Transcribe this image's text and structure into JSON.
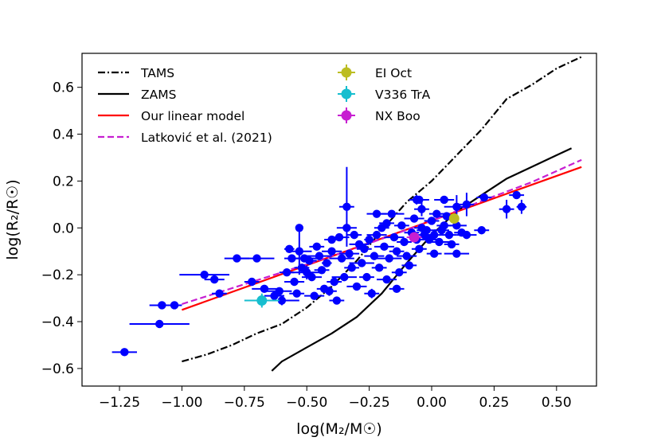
{
  "chart_data": {
    "type": "scatter",
    "xlabel": "log(M₂/M☉)",
    "ylabel": "log(R₂/R☉)",
    "xlim": [
      -1.4,
      0.66
    ],
    "ylim": [
      -0.675,
      0.745
    ],
    "xticks": [
      {
        "v": -1.25,
        "label": "−1.25"
      },
      {
        "v": -1.0,
        "label": "−1.00"
      },
      {
        "v": -0.75,
        "label": "−0.75"
      },
      {
        "v": -0.5,
        "label": "−0.50"
      },
      {
        "v": -0.25,
        "label": "−0.25"
      },
      {
        "v": 0.0,
        "label": "0.00"
      },
      {
        "v": 0.25,
        "label": "0.25"
      },
      {
        "v": 0.5,
        "label": "0.50"
      }
    ],
    "yticks": [
      {
        "v": -0.6,
        "label": "−0.6"
      },
      {
        "v": -0.4,
        "label": "−0.4"
      },
      {
        "v": -0.2,
        "label": "−0.2"
      },
      {
        "v": 0.0,
        "label": "0.0"
      },
      {
        "v": 0.2,
        "label": "0.2"
      },
      {
        "v": 0.4,
        "label": "0.4"
      },
      {
        "v": 0.6,
        "label": "0.6"
      }
    ],
    "grid": false,
    "legend_position": "top-left",
    "lines": [
      {
        "name": "TAMS",
        "color": "#000000",
        "style": "dashdot",
        "x": [
          -1.0,
          -0.9,
          -0.8,
          -0.7,
          -0.6,
          -0.5,
          -0.4,
          -0.3,
          -0.2,
          -0.1,
          0.0,
          0.1,
          0.2,
          0.3,
          0.4,
          0.5,
          0.6
        ],
        "y": [
          -0.57,
          -0.54,
          -0.5,
          -0.45,
          -0.41,
          -0.34,
          -0.25,
          -0.14,
          -0.01,
          0.11,
          0.2,
          0.31,
          0.42,
          0.55,
          0.61,
          0.68,
          0.73
        ]
      },
      {
        "name": "ZAMS",
        "color": "#000000",
        "style": "solid",
        "x": [
          -0.64,
          -0.6,
          -0.5,
          -0.4,
          -0.3,
          -0.2,
          -0.1,
          0.0,
          0.1,
          0.2,
          0.3,
          0.4,
          0.5,
          0.56
        ],
        "y": [
          -0.61,
          -0.57,
          -0.51,
          -0.45,
          -0.38,
          -0.28,
          -0.15,
          -0.03,
          0.07,
          0.14,
          0.21,
          0.26,
          0.31,
          0.34
        ]
      },
      {
        "name": "Our linear model",
        "color": "#ff0000",
        "style": "solid",
        "x": [
          -1.0,
          0.6
        ],
        "y": [
          -0.35,
          0.26
        ]
      },
      {
        "name": "Latković et al. (2021)",
        "color": "#c71fd1",
        "style": "dashed",
        "x": [
          -1.0,
          -0.6,
          -0.3,
          0.0,
          0.2,
          0.4,
          0.6
        ],
        "y": [
          -0.325,
          -0.19,
          -0.085,
          0.03,
          0.115,
          0.195,
          0.29
        ]
      }
    ],
    "series": [
      {
        "name": "",
        "color": "#0000ff",
        "points": [
          {
            "x": -1.23,
            "y": -0.53,
            "xe": 0.05,
            "ye": 0.0
          },
          {
            "x": -1.09,
            "y": -0.41,
            "xe": 0.12,
            "ye": 0.0
          },
          {
            "x": -1.08,
            "y": -0.33,
            "xe": 0.05,
            "ye": 0.0
          },
          {
            "x": -1.03,
            "y": -0.33,
            "xe": 0.03,
            "ye": 0.0
          },
          {
            "x": -0.91,
            "y": -0.2,
            "xe": 0.1,
            "ye": 0.0
          },
          {
            "x": -0.87,
            "y": -0.22,
            "xe": 0.04,
            "ye": 0.0
          },
          {
            "x": -0.85,
            "y": -0.28,
            "xe": 0.03,
            "ye": 0.0
          },
          {
            "x": -0.78,
            "y": -0.13,
            "xe": 0.05,
            "ye": 0.0
          },
          {
            "x": -0.72,
            "y": -0.23,
            "xe": 0.03,
            "ye": 0.0
          },
          {
            "x": -0.7,
            "y": -0.13,
            "xe": 0.07,
            "ye": 0.0
          },
          {
            "x": -0.67,
            "y": -0.26,
            "xe": 0.05,
            "ye": 0.01
          },
          {
            "x": -0.63,
            "y": -0.29,
            "xe": 0.04,
            "ye": 0.0
          },
          {
            "x": -0.61,
            "y": -0.27,
            "xe": 0.05,
            "ye": 0.0
          },
          {
            "x": -0.6,
            "y": -0.31,
            "xe": 0.07,
            "ye": 0.02
          },
          {
            "x": -0.58,
            "y": -0.19,
            "xe": 0.03,
            "ye": 0.0
          },
          {
            "x": -0.57,
            "y": -0.09,
            "xe": 0.02,
            "ye": 0.0
          },
          {
            "x": -0.56,
            "y": -0.13,
            "xe": 0.03,
            "ye": 0.0
          },
          {
            "x": -0.55,
            "y": -0.23,
            "xe": 0.04,
            "ye": 0.0
          },
          {
            "x": -0.54,
            "y": -0.28,
            "xe": 0.03,
            "ye": 0.0
          },
          {
            "x": -0.53,
            "y": -0.1,
            "xe": 0.05,
            "ye": 0.1
          },
          {
            "x": -0.52,
            "y": -0.17,
            "xe": 0.03,
            "ye": 0.0
          },
          {
            "x": -0.51,
            "y": -0.13,
            "xe": 0.06,
            "ye": 0.0
          },
          {
            "x": -0.5,
            "y": -0.19,
            "xe": 0.07,
            "ye": 0.03
          },
          {
            "x": -0.49,
            "y": -0.14,
            "xe": 0.03,
            "ye": 0.0
          },
          {
            "x": -0.48,
            "y": -0.21,
            "xe": 0.04,
            "ye": 0.0
          },
          {
            "x": -0.47,
            "y": -0.29,
            "xe": 0.04,
            "ye": 0.0
          },
          {
            "x": -0.46,
            "y": -0.08,
            "xe": 0.03,
            "ye": 0.0
          },
          {
            "x": -0.45,
            "y": -0.12,
            "xe": 0.05,
            "ye": 0.0
          },
          {
            "x": -0.44,
            "y": -0.18,
            "xe": 0.03,
            "ye": 0.0
          },
          {
            "x": -0.43,
            "y": -0.26,
            "xe": 0.03,
            "ye": 0.0
          },
          {
            "x": -0.42,
            "y": -0.15,
            "xe": 0.02,
            "ye": 0.0
          },
          {
            "x": -0.41,
            "y": -0.27,
            "xe": 0.03,
            "ye": 0.02
          },
          {
            "x": -0.4,
            "y": -0.1,
            "xe": 0.04,
            "ye": 0.0
          },
          {
            "x": -0.4,
            "y": -0.05,
            "xe": 0.03,
            "ye": 0.0
          },
          {
            "x": -0.39,
            "y": -0.23,
            "xe": 0.03,
            "ye": 0.0
          },
          {
            "x": -0.38,
            "y": -0.31,
            "xe": 0.03,
            "ye": 0.0
          },
          {
            "x": -0.37,
            "y": -0.04,
            "xe": 0.04,
            "ye": 0.0
          },
          {
            "x": -0.36,
            "y": -0.13,
            "xe": 0.05,
            "ye": 0.0
          },
          {
            "x": -0.35,
            "y": -0.21,
            "xe": 0.05,
            "ye": 0.0
          },
          {
            "x": -0.34,
            "y": 0.0,
            "xe": 0.04,
            "ye": 0.0
          },
          {
            "x": -0.33,
            "y": -0.11,
            "xe": 0.04,
            "ye": 0.0
          },
          {
            "x": -0.32,
            "y": -0.17,
            "xe": 0.03,
            "ye": 0.0
          },
          {
            "x": -0.31,
            "y": -0.03,
            "xe": 0.03,
            "ye": 0.0
          },
          {
            "x": -0.3,
            "y": -0.25,
            "xe": 0.04,
            "ye": 0.0
          },
          {
            "x": -0.29,
            "y": -0.07,
            "xe": 0.04,
            "ye": 0.0
          },
          {
            "x": -0.28,
            "y": -0.15,
            "xe": 0.05,
            "ye": 0.0
          },
          {
            "x": -0.27,
            "y": -0.09,
            "xe": 0.03,
            "ye": 0.0
          },
          {
            "x": -0.26,
            "y": -0.21,
            "xe": 0.03,
            "ye": 0.0
          },
          {
            "x": -0.25,
            "y": -0.05,
            "xe": 0.02,
            "ye": 0.0
          },
          {
            "x": -0.24,
            "y": -0.28,
            "xe": 0.03,
            "ye": 0.02
          },
          {
            "x": -0.23,
            "y": -0.12,
            "xe": 0.04,
            "ye": 0.0
          },
          {
            "x": -0.22,
            "y": -0.03,
            "xe": 0.04,
            "ye": 0.0
          },
          {
            "x": -0.21,
            "y": -0.17,
            "xe": 0.03,
            "ye": 0.0
          },
          {
            "x": -0.2,
            "y": 0.0,
            "xe": 0.03,
            "ye": 0.0
          },
          {
            "x": -0.19,
            "y": -0.08,
            "xe": 0.04,
            "ye": 0.0
          },
          {
            "x": -0.18,
            "y": -0.22,
            "xe": 0.04,
            "ye": 0.0
          },
          {
            "x": -0.17,
            "y": -0.13,
            "xe": 0.05,
            "ye": 0.0
          },
          {
            "x": -0.16,
            "y": 0.06,
            "xe": 0.05,
            "ye": 0.0
          },
          {
            "x": -0.15,
            "y": -0.04,
            "xe": 0.04,
            "ye": 0.0
          },
          {
            "x": -0.14,
            "y": -0.1,
            "xe": 0.03,
            "ye": 0.0
          },
          {
            "x": -0.13,
            "y": -0.19,
            "xe": 0.03,
            "ye": 0.0
          },
          {
            "x": -0.12,
            "y": 0.01,
            "xe": 0.03,
            "ye": 0.0
          },
          {
            "x": -0.11,
            "y": -0.06,
            "xe": 0.03,
            "ye": 0.0
          },
          {
            "x": -0.1,
            "y": -0.12,
            "xe": 0.04,
            "ye": 0.0
          },
          {
            "x": -0.09,
            "y": -0.16,
            "xe": 0.03,
            "ye": 0.0
          },
          {
            "x": -0.08,
            "y": -0.02,
            "xe": 0.03,
            "ye": 0.0
          },
          {
            "x": -0.07,
            "y": 0.04,
            "xe": 0.04,
            "ye": 0.0
          },
          {
            "x": -0.06,
            "y": -0.05,
            "xe": 0.02,
            "ye": 0.0
          },
          {
            "x": -0.05,
            "y": -0.09,
            "xe": 0.03,
            "ye": 0.0
          },
          {
            "x": -0.04,
            "y": 0.0,
            "xe": 0.03,
            "ye": 0.0
          },
          {
            "x": -0.03,
            "y": -0.03,
            "xe": 0.03,
            "ye": 0.0
          },
          {
            "x": -0.02,
            "y": -0.01,
            "xe": 0.04,
            "ye": 0.0
          },
          {
            "x": -0.01,
            "y": -0.05,
            "xe": 0.03,
            "ye": 0.0
          },
          {
            "x": 0.0,
            "y": 0.03,
            "xe": 0.03,
            "ye": 0.0
          },
          {
            "x": 0.01,
            "y": -0.03,
            "xe": 0.03,
            "ye": 0.0
          },
          {
            "x": 0.02,
            "y": 0.06,
            "xe": 0.03,
            "ye": 0.0
          },
          {
            "x": 0.03,
            "y": -0.06,
            "xe": 0.04,
            "ye": 0.0
          },
          {
            "x": 0.04,
            "y": -0.01,
            "xe": 0.03,
            "ye": 0.0
          },
          {
            "x": 0.05,
            "y": 0.01,
            "xe": 0.03,
            "ye": 0.0
          },
          {
            "x": 0.06,
            "y": 0.05,
            "xe": 0.04,
            "ye": 0.0
          },
          {
            "x": 0.07,
            "y": -0.03,
            "xe": 0.03,
            "ye": 0.0
          },
          {
            "x": 0.08,
            "y": -0.07,
            "xe": 0.03,
            "ye": 0.0
          },
          {
            "x": 0.1,
            "y": 0.09,
            "xe": 0.05,
            "ye": 0.05
          },
          {
            "x": 0.1,
            "y": 0.01,
            "xe": 0.04,
            "ye": 0.0
          },
          {
            "x": 0.12,
            "y": -0.02,
            "xe": 0.03,
            "ye": 0.0
          },
          {
            "x": 0.14,
            "y": -0.03,
            "xe": 0.04,
            "ye": 0.0
          },
          {
            "x": 0.2,
            "y": -0.01,
            "xe": 0.03,
            "ye": 0.0
          },
          {
            "x": 0.21,
            "y": 0.13,
            "xe": 0.03,
            "ye": 0.0
          },
          {
            "x": 0.3,
            "y": 0.08,
            "xe": 0.03,
            "ye": 0.04
          },
          {
            "x": 0.34,
            "y": 0.14,
            "xe": 0.03,
            "ye": 0.0
          },
          {
            "x": 0.36,
            "y": 0.09,
            "xe": 0.02,
            "ye": 0.03
          },
          {
            "x": -0.05,
            "y": 0.12,
            "xe": 0.04,
            "ye": 0.0
          },
          {
            "x": -0.04,
            "y": 0.08,
            "xe": 0.03,
            "ye": 0.03
          },
          {
            "x": 0.05,
            "y": 0.12,
            "xe": 0.04,
            "ye": 0.0
          },
          {
            "x": -0.18,
            "y": 0.02,
            "xe": 0.03,
            "ye": 0.0
          },
          {
            "x": -0.06,
            "y": 0.12,
            "xe": 0.03,
            "ye": 0.02
          },
          {
            "x": -0.34,
            "y": 0.09,
            "xe": 0.03,
            "ye": 0.17
          },
          {
            "x": -0.53,
            "y": 0.0,
            "xe": 0.0,
            "ye": 0.0
          },
          {
            "x": -0.22,
            "y": 0.06,
            "xe": 0.04,
            "ye": 0.0
          },
          {
            "x": 0.14,
            "y": 0.1,
            "xe": 0.03,
            "ye": 0.05
          },
          {
            "x": 0.1,
            "y": -0.11,
            "xe": 0.05,
            "ye": 0.0
          },
          {
            "x": 0.01,
            "y": -0.11,
            "xe": 0.03,
            "ye": 0.0
          },
          {
            "x": -0.14,
            "y": -0.26,
            "xe": 0.03,
            "ye": 0.0
          }
        ]
      },
      {
        "name": "EI Oct",
        "color": "#bcbd22",
        "points": [
          {
            "x": 0.09,
            "y": 0.04,
            "xe": 0.02,
            "ye": 0.02
          }
        ]
      },
      {
        "name": "V336 TrA",
        "color": "#17becf",
        "points": [
          {
            "x": -0.68,
            "y": -0.31,
            "xe": 0.07,
            "ye": 0.03
          }
        ]
      },
      {
        "name": "NX Boo",
        "color": "#c71fd1",
        "points": [
          {
            "x": -0.07,
            "y": -0.04,
            "xe": 0.03,
            "ye": 0.02
          }
        ]
      }
    ],
    "legend": [
      {
        "label": "TAMS",
        "kind": "line",
        "color": "#000000",
        "style": "dashdot"
      },
      {
        "label": "ZAMS",
        "kind": "line",
        "color": "#000000",
        "style": "solid"
      },
      {
        "label": "Our linear model",
        "kind": "line",
        "color": "#ff0000",
        "style": "solid"
      },
      {
        "label": "Latković et al. (2021)",
        "kind": "line",
        "color": "#c71fd1",
        "style": "dashed"
      },
      {
        "label": "EI Oct",
        "kind": "marker",
        "color": "#bcbd22"
      },
      {
        "label": "V336 TrA",
        "kind": "marker",
        "color": "#17becf"
      },
      {
        "label": "NX Boo",
        "kind": "marker",
        "color": "#c71fd1"
      }
    ]
  }
}
